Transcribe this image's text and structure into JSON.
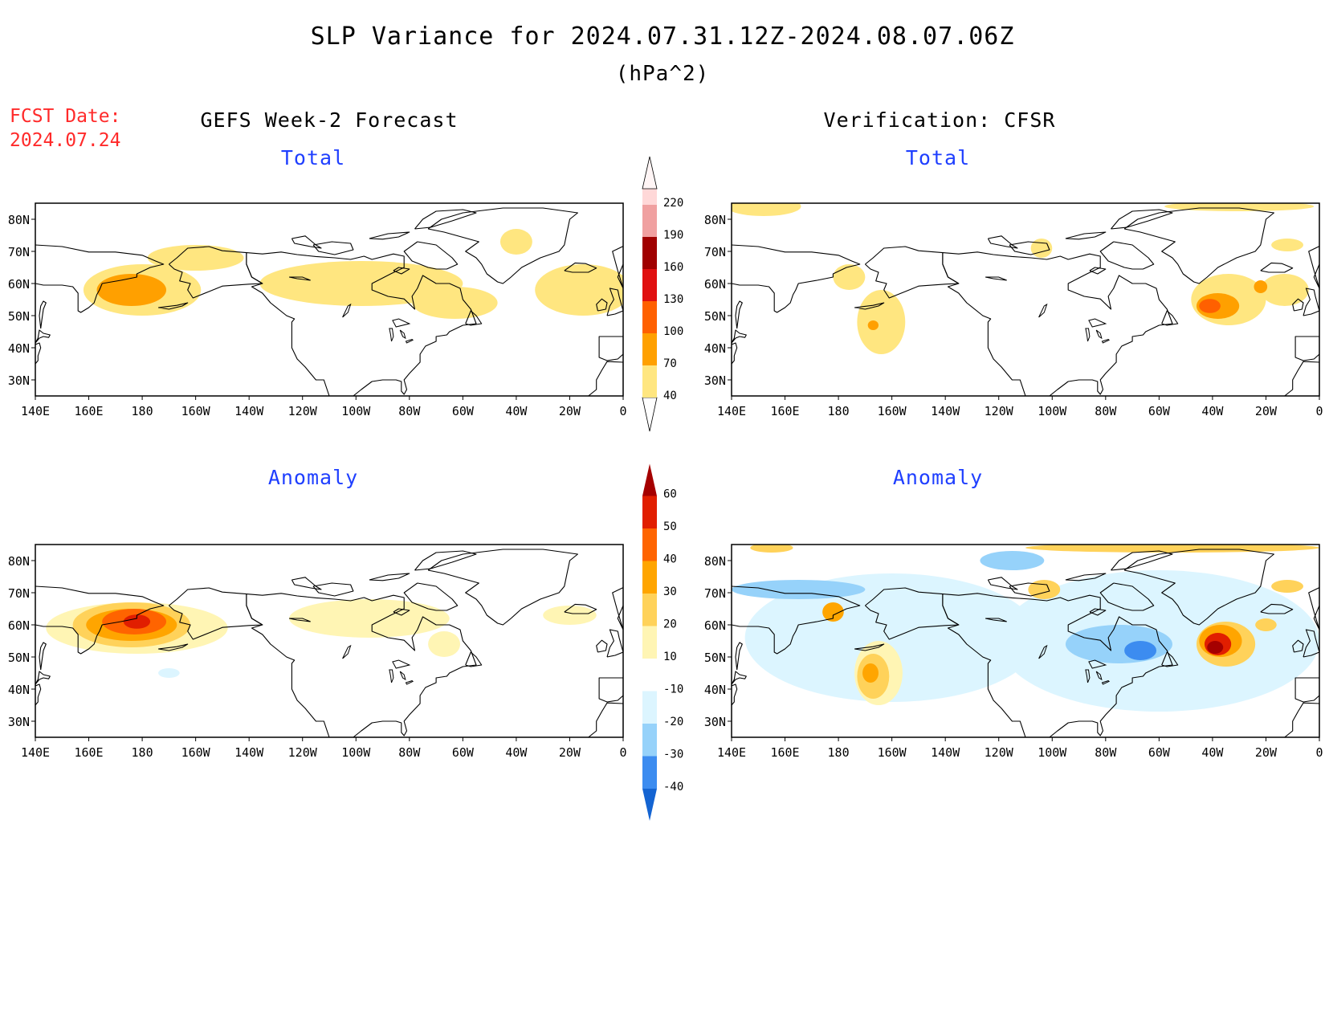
{
  "header": {
    "title": "SLP Variance for 2024.07.31.12Z-2024.08.07.06Z",
    "units": "(hPa^2)",
    "fcst_label": "FCST Date:",
    "fcst_date": "2024.07.24"
  },
  "columns": {
    "left": "GEFS Week-2 Forecast",
    "right": "Verification: CFSR"
  },
  "panels": {
    "top_left": "Total",
    "top_right": "Total",
    "bottom_left": "Anomaly",
    "bottom_right": "Anomaly"
  },
  "map": {
    "lat_labels": [
      "80N",
      "70N",
      "60N",
      "50N",
      "40N",
      "30N"
    ],
    "lat_values": [
      80,
      70,
      60,
      50,
      40,
      30
    ],
    "lon_labels": [
      "140E",
      "160E",
      "180",
      "160W",
      "140W",
      "120W",
      "100W",
      "80W",
      "60W",
      "40W",
      "20W",
      "0"
    ],
    "lon_values": [
      140,
      160,
      180,
      200,
      220,
      240,
      260,
      280,
      300,
      320,
      340,
      360
    ],
    "lon_range": [
      140,
      360
    ],
    "lat_range": [
      25,
      85
    ]
  },
  "colorbars": {
    "total": {
      "levels": [
        "40",
        "70",
        "100",
        "130",
        "160",
        "190",
        "220"
      ],
      "colors": [
        "#ffe680",
        "#ffa000",
        "#ff6000",
        "#e01010",
        "#a00000",
        "#f0a0a0",
        "#ffd8d8",
        "#fff5f5"
      ]
    },
    "anomaly": {
      "levels": [
        "-40",
        "-30",
        "-20",
        "-10",
        "10",
        "20",
        "30",
        "40",
        "50",
        "60"
      ],
      "colors": [
        "#1464d2",
        "#3c8cf0",
        "#96d2fa",
        "#dcf5ff",
        "#ffffff",
        "#fff5b4",
        "#ffd25a",
        "#ffa500",
        "#ff6400",
        "#e11e00",
        "#a50000"
      ]
    }
  },
  "fields": {
    "top_left": [
      {
        "lon": 180,
        "lat": 58,
        "rx": 22,
        "ry": 8,
        "color": "#ffe680"
      },
      {
        "lon": 176,
        "lat": 58,
        "rx": 13,
        "ry": 5,
        "color": "#ffa000"
      },
      {
        "lon": 200,
        "lat": 68,
        "rx": 18,
        "ry": 4,
        "color": "#ffe680"
      },
      {
        "lon": 262,
        "lat": 60,
        "rx": 38,
        "ry": 7,
        "color": "#ffe680"
      },
      {
        "lon": 297,
        "lat": 54,
        "rx": 16,
        "ry": 5,
        "color": "#ffe680"
      },
      {
        "lon": 320,
        "lat": 73,
        "rx": 6,
        "ry": 4,
        "color": "#ffe680"
      },
      {
        "lon": 345,
        "lat": 58,
        "rx": 18,
        "ry": 8,
        "color": "#ffe680"
      }
    ],
    "top_right": [
      {
        "lon": 152,
        "lat": 84,
        "rx": 14,
        "ry": 3,
        "color": "#ffe680"
      },
      {
        "lon": 330,
        "lat": 84,
        "rx": 28,
        "ry": 1.5,
        "color": "#ffe680"
      },
      {
        "lon": 184,
        "lat": 62,
        "rx": 6,
        "ry": 4,
        "color": "#ffe680"
      },
      {
        "lon": 196,
        "lat": 48,
        "rx": 9,
        "ry": 10,
        "color": "#ffe680"
      },
      {
        "lon": 193,
        "lat": 47,
        "rx": 2,
        "ry": 1.5,
        "color": "#ffa000"
      },
      {
        "lon": 256,
        "lat": 71,
        "rx": 4,
        "ry": 3,
        "color": "#ffe680"
      },
      {
        "lon": 326,
        "lat": 55,
        "rx": 14,
        "ry": 8,
        "color": "#ffe680"
      },
      {
        "lon": 347,
        "lat": 58,
        "rx": 9,
        "ry": 5,
        "color": "#ffe680"
      },
      {
        "lon": 322,
        "lat": 53,
        "rx": 8,
        "ry": 4,
        "color": "#ffa000"
      },
      {
        "lon": 319,
        "lat": 53,
        "rx": 4,
        "ry": 2.2,
        "color": "#ff6000"
      },
      {
        "lon": 338,
        "lat": 59,
        "rx": 2.5,
        "ry": 2,
        "color": "#ffa000"
      },
      {
        "lon": 348,
        "lat": 72,
        "rx": 6,
        "ry": 2,
        "color": "#ffe680"
      }
    ],
    "bottom_left": [
      {
        "lon": 178,
        "lat": 59,
        "rx": 34,
        "ry": 8,
        "color": "#fff5b4"
      },
      {
        "lon": 176,
        "lat": 60,
        "rx": 22,
        "ry": 7,
        "color": "#ffd25a"
      },
      {
        "lon": 176,
        "lat": 60,
        "rx": 17,
        "ry": 5,
        "color": "#ffa500"
      },
      {
        "lon": 177,
        "lat": 61,
        "rx": 12,
        "ry": 4,
        "color": "#ff6400"
      },
      {
        "lon": 178,
        "lat": 61,
        "rx": 5,
        "ry": 2.2,
        "color": "#e11e00"
      },
      {
        "lon": 265,
        "lat": 62,
        "rx": 30,
        "ry": 6,
        "color": "#fff5b4"
      },
      {
        "lon": 293,
        "lat": 54,
        "rx": 6,
        "ry": 4,
        "color": "#fff5b4"
      },
      {
        "lon": 340,
        "lat": 63,
        "rx": 10,
        "ry": 3,
        "color": "#fff5b4"
      },
      {
        "lon": 190,
        "lat": 45,
        "rx": 4,
        "ry": 1.5,
        "color": "#dcf5ff"
      }
    ],
    "bottom_right": [
      {
        "lon": 200,
        "lat": 56,
        "rx": 55,
        "ry": 20,
        "color": "#dcf5ff"
      },
      {
        "lon": 300,
        "lat": 55,
        "rx": 60,
        "ry": 22,
        "color": "#dcf5ff"
      },
      {
        "lon": 165,
        "lat": 71,
        "rx": 25,
        "ry": 3,
        "color": "#96d2fa"
      },
      {
        "lon": 245,
        "lat": 80,
        "rx": 12,
        "ry": 3,
        "color": "#96d2fa"
      },
      {
        "lon": 285,
        "lat": 54,
        "rx": 20,
        "ry": 6,
        "color": "#96d2fa"
      },
      {
        "lon": 293,
        "lat": 52,
        "rx": 6,
        "ry": 3,
        "color": "#3c8cf0"
      },
      {
        "lon": 178,
        "lat": 64,
        "rx": 4,
        "ry": 3,
        "color": "#ffa500"
      },
      {
        "lon": 195,
        "lat": 45,
        "rx": 9,
        "ry": 10,
        "color": "#fff5b4"
      },
      {
        "lon": 193,
        "lat": 44,
        "rx": 6,
        "ry": 7,
        "color": "#ffd25a"
      },
      {
        "lon": 192,
        "lat": 45,
        "rx": 3,
        "ry": 3,
        "color": "#ffa500"
      },
      {
        "lon": 257,
        "lat": 71,
        "rx": 6,
        "ry": 3,
        "color": "#ffd25a"
      },
      {
        "lon": 325,
        "lat": 54,
        "rx": 11,
        "ry": 7,
        "color": "#ffd25a"
      },
      {
        "lon": 323,
        "lat": 55,
        "rx": 8,
        "ry": 5,
        "color": "#ffa500"
      },
      {
        "lon": 322,
        "lat": 54,
        "rx": 5,
        "ry": 3.5,
        "color": "#e11e00"
      },
      {
        "lon": 321,
        "lat": 53,
        "rx": 3,
        "ry": 2,
        "color": "#a50000"
      },
      {
        "lon": 305,
        "lat": 84,
        "rx": 55,
        "ry": 1.5,
        "color": "#ffd25a"
      },
      {
        "lon": 155,
        "lat": 84,
        "rx": 8,
        "ry": 1.5,
        "color": "#ffd25a"
      },
      {
        "lon": 348,
        "lat": 72,
        "rx": 6,
        "ry": 2,
        "color": "#ffd25a"
      },
      {
        "lon": 340,
        "lat": 60,
        "rx": 4,
        "ry": 2,
        "color": "#ffd25a"
      }
    ]
  }
}
